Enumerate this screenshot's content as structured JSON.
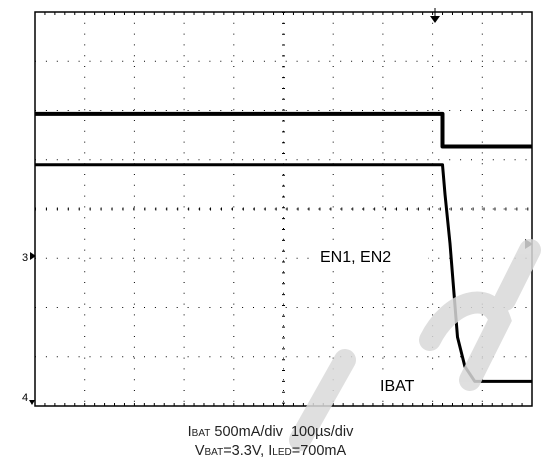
{
  "chart_data": {
    "type": "line",
    "x_divisions": 10,
    "y_divisions": 8,
    "grid": true,
    "trigger_time_div": 8.2,
    "series": [
      {
        "name": "EN1, EN2",
        "channel_marker": "3",
        "points": [
          [
            0,
            5.93
          ],
          [
            8.2,
            5.93
          ],
          [
            8.2,
            5.27
          ],
          [
            10,
            5.27
          ]
        ]
      },
      {
        "name": "IBAT",
        "channel_marker": "4",
        "points": [
          [
            0,
            4.9
          ],
          [
            8.2,
            4.9
          ],
          [
            8.25,
            4.3
          ],
          [
            8.35,
            3.3
          ],
          [
            8.5,
            1.4
          ],
          [
            8.65,
            0.8
          ],
          [
            8.85,
            0.5
          ],
          [
            10,
            0.5
          ]
        ]
      }
    ]
  },
  "labels": {
    "en": "EN1, EN2",
    "ibat": "IBAT",
    "marker3": "3",
    "marker4": "4"
  },
  "caption": {
    "l1_i": "I",
    "l1_bat": "BAT",
    "l1_rest": " 500mA/div  100µs/div",
    "l2_v": "V",
    "l2_bat": "BAT",
    "l2_mid": "=3.3V, I",
    "l2_led": "LED",
    "l2_end": "=700mA"
  },
  "colors": {
    "grid": "#000000",
    "trace": "#000000",
    "watermark": "#d9d9d9"
  }
}
